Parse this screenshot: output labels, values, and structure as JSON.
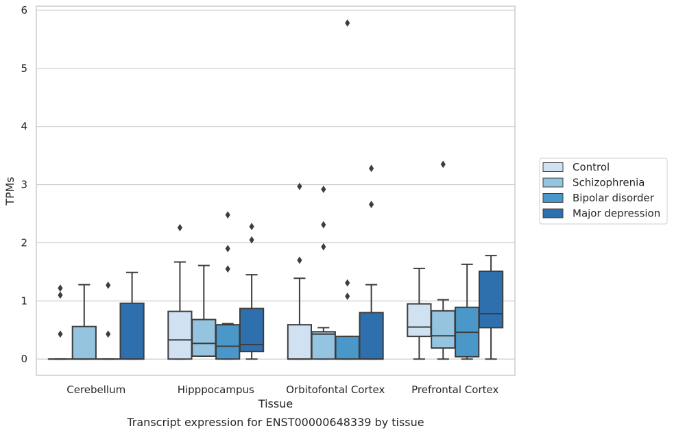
{
  "chart_data": {
    "type": "box",
    "title": "Transcript expression for ENST00000648339 by tissue",
    "xlabel": "Tissue",
    "ylabel": "TPMs",
    "ylim": [
      -0.28,
      6.07
    ],
    "yticks": [
      0,
      1,
      2,
      3,
      4,
      5,
      6
    ],
    "grid": "horizontal",
    "legend_position": "right",
    "categories": [
      "Cerebellum",
      "Hipppocampus",
      "Orbitofontal Cortex",
      "Prefrontal Cortex"
    ],
    "series": [
      {
        "name": "Control",
        "color": "#d0e1f2",
        "boxes": [
          {
            "min": 0,
            "q1": 0,
            "median": 0,
            "q3": 0,
            "max": 0,
            "outliers": [
              0.43,
              1.1,
              1.22
            ]
          },
          {
            "min": 0,
            "q1": 0,
            "median": 0.33,
            "q3": 0.82,
            "max": 1.67,
            "outliers": [
              2.26
            ]
          },
          {
            "min": 0,
            "q1": 0,
            "median": 0,
            "q3": 0.59,
            "max": 1.39,
            "outliers": [
              1.7,
              2.97
            ]
          },
          {
            "min": 0,
            "q1": 0.39,
            "median": 0.55,
            "q3": 0.95,
            "max": 1.56,
            "outliers": []
          }
        ]
      },
      {
        "name": "Schizophrenia",
        "color": "#94c4df",
        "boxes": [
          {
            "min": 0,
            "q1": 0,
            "median": 0,
            "q3": 0.56,
            "max": 1.28,
            "outliers": []
          },
          {
            "min": 0.05,
            "q1": 0.05,
            "median": 0.27,
            "q3": 0.68,
            "max": 1.61,
            "outliers": []
          },
          {
            "min": 0,
            "q1": 0,
            "median": 0.43,
            "q3": 0.47,
            "max": 0.54,
            "outliers": [
              1.93,
              2.31,
              2.92
            ]
          },
          {
            "min": 0,
            "q1": 0.19,
            "median": 0.4,
            "q3": 0.83,
            "max": 1.02,
            "outliers": [
              3.35
            ]
          }
        ]
      },
      {
        "name": "Bipolar disorder",
        "color": "#4a98c9",
        "boxes": [
          {
            "min": 0,
            "q1": 0,
            "median": 0,
            "q3": 0,
            "max": 0,
            "outliers": [
              0.43,
              1.27
            ]
          },
          {
            "min": 0,
            "q1": 0,
            "median": 0.22,
            "q3": 0.59,
            "max": 0.61,
            "outliers": [
              1.55,
              1.9,
              2.48
            ]
          },
          {
            "min": 0,
            "q1": 0,
            "median": 0,
            "q3": 0.39,
            "max": 0.39,
            "outliers": [
              1.08,
              1.31,
              5.78
            ]
          },
          {
            "min": 0,
            "q1": 0.04,
            "median": 0.46,
            "q3": 0.89,
            "max": 1.63,
            "outliers": []
          }
        ]
      },
      {
        "name": "Major depression",
        "color": "#2e6fad",
        "boxes": [
          {
            "min": 0,
            "q1": 0,
            "median": 0,
            "q3": 0.96,
            "max": 1.49,
            "outliers": []
          },
          {
            "min": 0,
            "q1": 0.13,
            "median": 0.25,
            "q3": 0.87,
            "max": 1.45,
            "outliers": [
              2.05,
              2.28
            ]
          },
          {
            "min": 0,
            "q1": 0,
            "median": 0,
            "q3": 0.8,
            "max": 1.28,
            "outliers": [
              2.66,
              3.28
            ]
          },
          {
            "min": 0,
            "q1": 0.54,
            "median": 0.78,
            "q3": 1.51,
            "max": 1.78,
            "outliers": []
          }
        ]
      }
    ]
  }
}
